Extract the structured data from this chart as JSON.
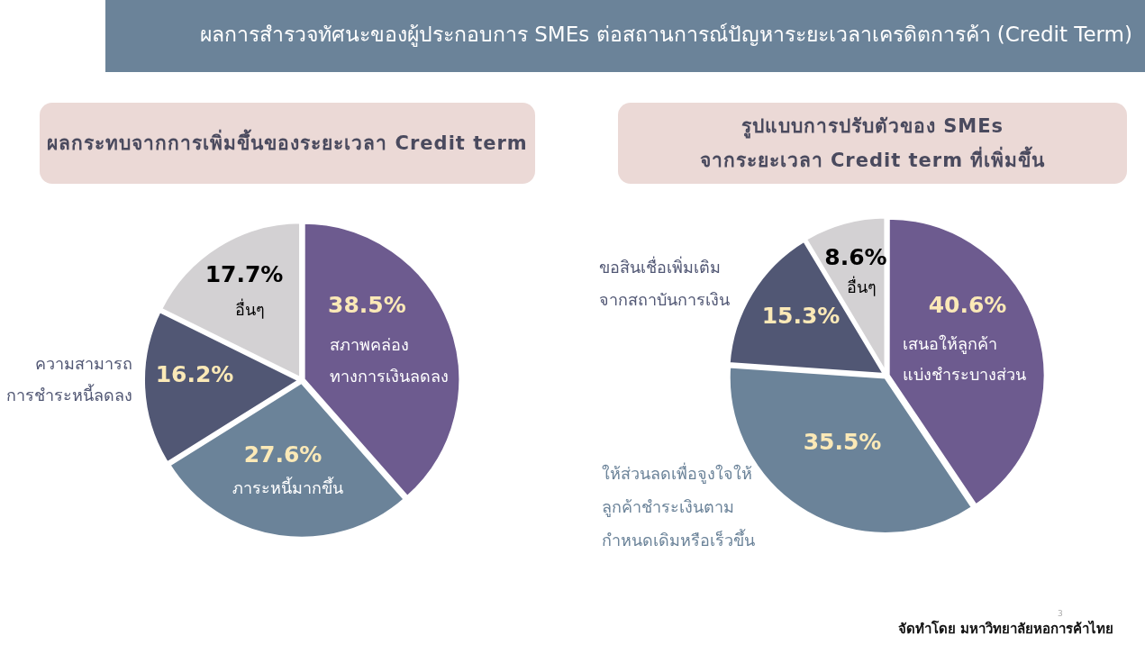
{
  "chart_data": [
    {
      "type": "other",
      "title": "ผลการสำรวจทัศนะของผู้ประกอบการ SMEs ต่อสถานการณ์ปัญหาระยะเวลาเครดิตการค้า (Credit Term)"
    },
    {
      "type": "pie",
      "title": "ผลกระทบจากการเพิ่มขึ้นของระยะเวลา Credit term",
      "categories": [
        "สภาพคล่อง\nทางการเงินลดลง",
        "ภาระหนี้มากขึ้น",
        "ความสามารถ\nการชำระหนี้ลดลง",
        "อื่นๆ"
      ],
      "values": [
        38.5,
        27.6,
        16.2,
        17.7
      ],
      "value_labels": [
        "38.5%",
        "27.6%",
        "16.2%",
        "17.7%"
      ],
      "colors": [
        "#6d5b8f",
        "#6b8399",
        "#515774",
        "#d3d1d3"
      ]
    },
    {
      "type": "pie",
      "title": "รูปแบบการปรับตัวของ SMEs\nจากระยะเวลา Credit term ที่เพิ่มขึ้น",
      "categories": [
        "เสนอให้ลูกค้า\nแบ่งชำระบางส่วน",
        "ให้ส่วนลดเพื่อจูงใจให้\nลูกค้าชำระเงินตาม\nกำหนดเดิมหรือเร็วขึ้น",
        "ขอสินเชื่อเพิ่มเติม\nจากสถาบันการเงิน",
        "อื่นๆ"
      ],
      "values": [
        40.6,
        35.5,
        15.3,
        8.6
      ],
      "value_labels": [
        "40.6%",
        "35.5%",
        "15.3%",
        "8.6%"
      ],
      "colors": [
        "#6d5b8f",
        "#6b8399",
        "#515774",
        "#d3d1d3"
      ],
      "annotations": [
        "3",
        "จัดทำโดย มหาวิทยาลัยหอการค้าไทย"
      ]
    }
  ]
}
